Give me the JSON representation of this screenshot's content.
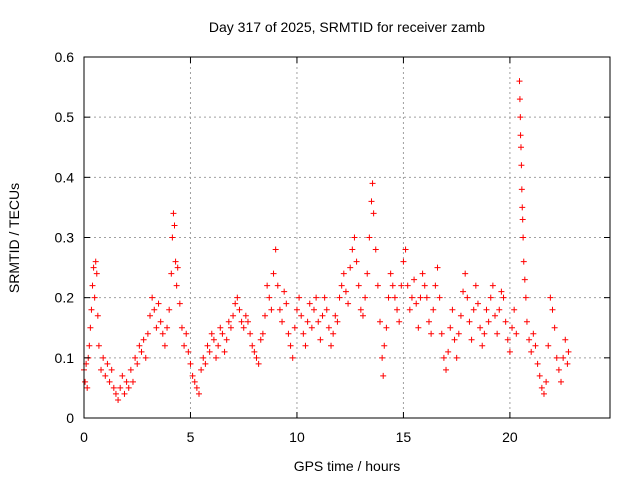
{
  "chart_data": {
    "type": "scatter",
    "title": "Day 317 of 2025, SRMTID for receiver zamb",
    "xlabel": "GPS time / hours",
    "ylabel": "SRMTID / TECUs",
    "xlim": [
      0,
      24.7
    ],
    "ylim": [
      0,
      0.6
    ],
    "x_ticks": [
      0,
      5,
      10,
      15,
      20
    ],
    "x_tick_labels": [
      "0",
      "5",
      "10",
      "15",
      "20"
    ],
    "y_ticks": [
      0,
      0.1,
      0.2,
      0.3,
      0.4,
      0.5,
      0.6
    ],
    "y_tick_labels": [
      "0",
      "0.1",
      "0.2",
      "0.3",
      "0.4",
      "0.5",
      "0.6"
    ],
    "grid": true,
    "marker": "+",
    "color": "#ff0000",
    "series": [
      {
        "name": "SRMTID",
        "points": [
          [
            0.0,
            0.08
          ],
          [
            0.05,
            0.06
          ],
          [
            0.1,
            0.09
          ],
          [
            0.15,
            0.05
          ],
          [
            0.2,
            0.1
          ],
          [
            0.25,
            0.12
          ],
          [
            0.3,
            0.15
          ],
          [
            0.35,
            0.18
          ],
          [
            0.4,
            0.22
          ],
          [
            0.45,
            0.25
          ],
          [
            0.5,
            0.2
          ],
          [
            0.55,
            0.26
          ],
          [
            0.6,
            0.24
          ],
          [
            0.65,
            0.17
          ],
          [
            0.7,
            0.12
          ],
          [
            0.8,
            0.08
          ],
          [
            0.9,
            0.1
          ],
          [
            1.0,
            0.07
          ],
          [
            1.1,
            0.09
          ],
          [
            1.2,
            0.06
          ],
          [
            1.3,
            0.08
          ],
          [
            1.4,
            0.05
          ],
          [
            1.5,
            0.04
          ],
          [
            1.6,
            0.03
          ],
          [
            1.7,
            0.05
          ],
          [
            1.8,
            0.07
          ],
          [
            1.9,
            0.04
          ],
          [
            2.0,
            0.06
          ],
          [
            2.1,
            0.05
          ],
          [
            2.2,
            0.08
          ],
          [
            2.3,
            0.06
          ],
          [
            2.4,
            0.1
          ],
          [
            2.5,
            0.09
          ],
          [
            2.6,
            0.12
          ],
          [
            2.7,
            0.11
          ],
          [
            2.8,
            0.13
          ],
          [
            2.9,
            0.1
          ],
          [
            3.0,
            0.14
          ],
          [
            3.1,
            0.17
          ],
          [
            3.2,
            0.2
          ],
          [
            3.3,
            0.18
          ],
          [
            3.4,
            0.15
          ],
          [
            3.5,
            0.19
          ],
          [
            3.6,
            0.16
          ],
          [
            3.7,
            0.14
          ],
          [
            3.8,
            0.12
          ],
          [
            3.9,
            0.15
          ],
          [
            4.0,
            0.18
          ],
          [
            4.1,
            0.24
          ],
          [
            4.15,
            0.3
          ],
          [
            4.2,
            0.34
          ],
          [
            4.25,
            0.32
          ],
          [
            4.3,
            0.26
          ],
          [
            4.35,
            0.22
          ],
          [
            4.4,
            0.25
          ],
          [
            4.5,
            0.19
          ],
          [
            4.6,
            0.15
          ],
          [
            4.7,
            0.12
          ],
          [
            4.8,
            0.14
          ],
          [
            4.9,
            0.11
          ],
          [
            5.0,
            0.09
          ],
          [
            5.1,
            0.07
          ],
          [
            5.2,
            0.06
          ],
          [
            5.3,
            0.05
          ],
          [
            5.4,
            0.04
          ],
          [
            5.5,
            0.08
          ],
          [
            5.6,
            0.1
          ],
          [
            5.7,
            0.09
          ],
          [
            5.8,
            0.12
          ],
          [
            5.9,
            0.11
          ],
          [
            6.0,
            0.14
          ],
          [
            6.1,
            0.13
          ],
          [
            6.2,
            0.1
          ],
          [
            6.3,
            0.12
          ],
          [
            6.4,
            0.15
          ],
          [
            6.5,
            0.14
          ],
          [
            6.6,
            0.11
          ],
          [
            6.7,
            0.13
          ],
          [
            6.8,
            0.16
          ],
          [
            6.9,
            0.15
          ],
          [
            7.0,
            0.17
          ],
          [
            7.1,
            0.19
          ],
          [
            7.2,
            0.2
          ],
          [
            7.3,
            0.18
          ],
          [
            7.4,
            0.16
          ],
          [
            7.5,
            0.15
          ],
          [
            7.6,
            0.17
          ],
          [
            7.7,
            0.16
          ],
          [
            7.8,
            0.14
          ],
          [
            7.9,
            0.12
          ],
          [
            8.0,
            0.11
          ],
          [
            8.1,
            0.1
          ],
          [
            8.2,
            0.09
          ],
          [
            8.3,
            0.13
          ],
          [
            8.4,
            0.14
          ],
          [
            8.5,
            0.17
          ],
          [
            8.6,
            0.22
          ],
          [
            8.7,
            0.2
          ],
          [
            8.8,
            0.18
          ],
          [
            8.9,
            0.24
          ],
          [
            9.0,
            0.28
          ],
          [
            9.1,
            0.22
          ],
          [
            9.2,
            0.18
          ],
          [
            9.3,
            0.16
          ],
          [
            9.4,
            0.21
          ],
          [
            9.5,
            0.19
          ],
          [
            9.6,
            0.14
          ],
          [
            9.7,
            0.12
          ],
          [
            9.8,
            0.1
          ],
          [
            9.9,
            0.15
          ],
          [
            10.0,
            0.18
          ],
          [
            10.1,
            0.2
          ],
          [
            10.2,
            0.17
          ],
          [
            10.3,
            0.14
          ],
          [
            10.4,
            0.12
          ],
          [
            10.5,
            0.16
          ],
          [
            10.6,
            0.19
          ],
          [
            10.7,
            0.15
          ],
          [
            10.8,
            0.18
          ],
          [
            10.9,
            0.2
          ],
          [
            11.0,
            0.16
          ],
          [
            11.1,
            0.13
          ],
          [
            11.2,
            0.17
          ],
          [
            11.3,
            0.2
          ],
          [
            11.4,
            0.18
          ],
          [
            11.5,
            0.15
          ],
          [
            11.6,
            0.12
          ],
          [
            11.7,
            0.14
          ],
          [
            11.8,
            0.17
          ],
          [
            11.9,
            0.16
          ],
          [
            12.0,
            0.2
          ],
          [
            12.1,
            0.22
          ],
          [
            12.2,
            0.24
          ],
          [
            12.3,
            0.21
          ],
          [
            12.4,
            0.19
          ],
          [
            12.5,
            0.25
          ],
          [
            12.6,
            0.28
          ],
          [
            12.7,
            0.3
          ],
          [
            12.8,
            0.26
          ],
          [
            12.9,
            0.22
          ],
          [
            13.0,
            0.18
          ],
          [
            13.1,
            0.17
          ],
          [
            13.2,
            0.2
          ],
          [
            13.3,
            0.24
          ],
          [
            13.4,
            0.3
          ],
          [
            13.5,
            0.36
          ],
          [
            13.55,
            0.39
          ],
          [
            13.6,
            0.34
          ],
          [
            13.7,
            0.28
          ],
          [
            13.8,
            0.22
          ],
          [
            13.9,
            0.16
          ],
          [
            14.0,
            0.1
          ],
          [
            14.05,
            0.07
          ],
          [
            14.1,
            0.12
          ],
          [
            14.2,
            0.15
          ],
          [
            14.3,
            0.2
          ],
          [
            14.4,
            0.24
          ],
          [
            14.5,
            0.22
          ],
          [
            14.6,
            0.2
          ],
          [
            14.7,
            0.18
          ],
          [
            14.8,
            0.16
          ],
          [
            14.9,
            0.22
          ],
          [
            15.0,
            0.26
          ],
          [
            15.1,
            0.28
          ],
          [
            15.2,
            0.22
          ],
          [
            15.3,
            0.18
          ],
          [
            15.4,
            0.2
          ],
          [
            15.5,
            0.23
          ],
          [
            15.6,
            0.19
          ],
          [
            15.7,
            0.15
          ],
          [
            15.8,
            0.2
          ],
          [
            15.9,
            0.24
          ],
          [
            16.0,
            0.22
          ],
          [
            16.1,
            0.2
          ],
          [
            16.2,
            0.16
          ],
          [
            16.3,
            0.14
          ],
          [
            16.4,
            0.18
          ],
          [
            16.5,
            0.22
          ],
          [
            16.6,
            0.25
          ],
          [
            16.7,
            0.2
          ],
          [
            16.8,
            0.14
          ],
          [
            16.9,
            0.1
          ],
          [
            17.0,
            0.08
          ],
          [
            17.1,
            0.11
          ],
          [
            17.2,
            0.15
          ],
          [
            17.3,
            0.18
          ],
          [
            17.4,
            0.13
          ],
          [
            17.5,
            0.1
          ],
          [
            17.6,
            0.14
          ],
          [
            17.7,
            0.17
          ],
          [
            17.8,
            0.21
          ],
          [
            17.9,
            0.24
          ],
          [
            18.0,
            0.2
          ],
          [
            18.1,
            0.16
          ],
          [
            18.2,
            0.13
          ],
          [
            18.3,
            0.18
          ],
          [
            18.4,
            0.22
          ],
          [
            18.5,
            0.19
          ],
          [
            18.6,
            0.15
          ],
          [
            18.7,
            0.12
          ],
          [
            18.8,
            0.14
          ],
          [
            18.9,
            0.18
          ],
          [
            19.0,
            0.16
          ],
          [
            19.1,
            0.2
          ],
          [
            19.2,
            0.22
          ],
          [
            19.3,
            0.17
          ],
          [
            19.4,
            0.14
          ],
          [
            19.5,
            0.18
          ],
          [
            19.6,
            0.21
          ],
          [
            19.7,
            0.2
          ],
          [
            19.8,
            0.16
          ],
          [
            19.9,
            0.13
          ],
          [
            20.0,
            0.11
          ],
          [
            20.1,
            0.15
          ],
          [
            20.2,
            0.18
          ],
          [
            20.3,
            0.14
          ],
          [
            20.45,
            0.56
          ],
          [
            20.47,
            0.53
          ],
          [
            20.49,
            0.5
          ],
          [
            20.5,
            0.47
          ],
          [
            20.52,
            0.45
          ],
          [
            20.54,
            0.42
          ],
          [
            20.56,
            0.38
          ],
          [
            20.58,
            0.35
          ],
          [
            20.6,
            0.33
          ],
          [
            20.62,
            0.3
          ],
          [
            20.65,
            0.26
          ],
          [
            20.7,
            0.23
          ],
          [
            20.75,
            0.2
          ],
          [
            20.8,
            0.16
          ],
          [
            20.9,
            0.13
          ],
          [
            21.0,
            0.11
          ],
          [
            21.1,
            0.14
          ],
          [
            21.2,
            0.12
          ],
          [
            21.3,
            0.09
          ],
          [
            21.4,
            0.07
          ],
          [
            21.5,
            0.05
          ],
          [
            21.6,
            0.04
          ],
          [
            21.7,
            0.06
          ],
          [
            21.8,
            0.12
          ],
          [
            21.9,
            0.2
          ],
          [
            22.0,
            0.18
          ],
          [
            22.1,
            0.15
          ],
          [
            22.2,
            0.1
          ],
          [
            22.3,
            0.08
          ],
          [
            22.4,
            0.06
          ],
          [
            22.5,
            0.1
          ],
          [
            22.6,
            0.13
          ],
          [
            22.7,
            0.09
          ],
          [
            22.75,
            0.11
          ]
        ]
      }
    ]
  }
}
